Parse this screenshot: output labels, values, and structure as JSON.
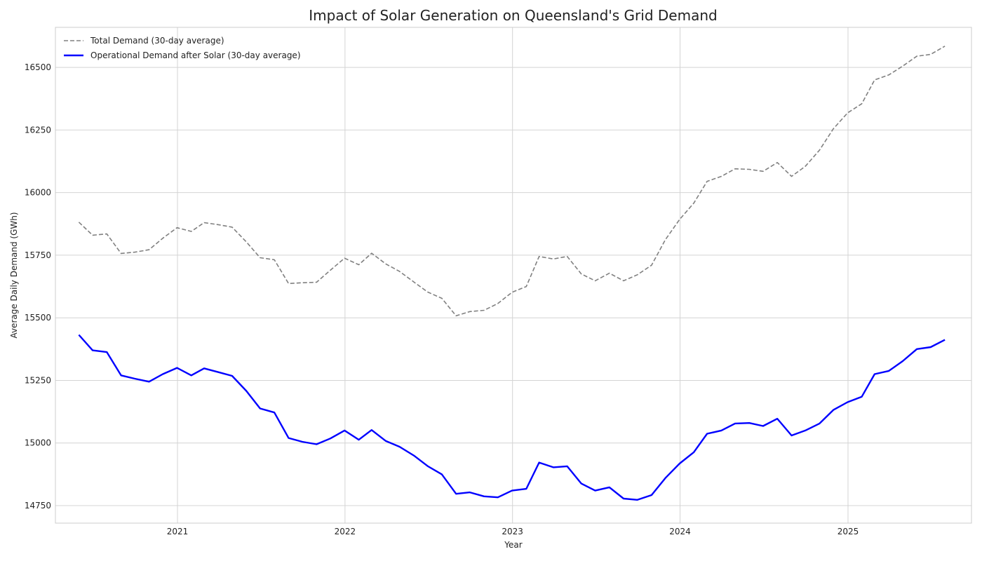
{
  "chart_data": {
    "type": "line",
    "title": "Impact of Solar Generation on Queensland's Grid Demand",
    "xlabel": "Year",
    "ylabel": "Average Daily Demand (GWh)",
    "x_ticks": [
      "2021",
      "2022",
      "2023",
      "2024",
      "2025"
    ],
    "y_ticks": [
      14750,
      15000,
      15250,
      15500,
      15750,
      16000,
      16250,
      16500
    ],
    "xlim": [
      "2020-04-10",
      "2025-09-27"
    ],
    "ylim": [
      14680,
      16660
    ],
    "grid": true,
    "legend_position": "top-left",
    "x": [
      "2020-05-31",
      "2020-06-30",
      "2020-07-31",
      "2020-08-31",
      "2020-09-30",
      "2020-10-31",
      "2020-11-30",
      "2020-12-31",
      "2021-01-31",
      "2021-02-28",
      "2021-03-31",
      "2021-04-30",
      "2021-05-31",
      "2021-06-30",
      "2021-07-31",
      "2021-08-31",
      "2021-09-30",
      "2021-10-31",
      "2021-11-30",
      "2021-12-31",
      "2022-01-31",
      "2022-02-28",
      "2022-03-31",
      "2022-04-30",
      "2022-05-31",
      "2022-06-30",
      "2022-07-31",
      "2022-08-31",
      "2022-09-30",
      "2022-10-31",
      "2022-11-30",
      "2022-12-31",
      "2023-01-31",
      "2023-02-28",
      "2023-03-31",
      "2023-04-30",
      "2023-05-31",
      "2023-06-30",
      "2023-07-31",
      "2023-08-31",
      "2023-09-30",
      "2023-10-31",
      "2023-11-30",
      "2023-12-31",
      "2024-01-31",
      "2024-02-29",
      "2024-03-31",
      "2024-04-30",
      "2024-05-31",
      "2024-06-30",
      "2024-07-31",
      "2024-08-31",
      "2024-09-30",
      "2024-10-31",
      "2024-11-30",
      "2024-12-31",
      "2025-01-31",
      "2025-02-28",
      "2025-03-31",
      "2025-04-30",
      "2025-05-31",
      "2025-06-30",
      "2025-07-31"
    ],
    "series": [
      {
        "name": "Total Demand (30-day average)",
        "color": "#808080",
        "dash": "dashed",
        "values": [
          15882,
          15830,
          15835,
          15757,
          15762,
          15772,
          15818,
          15860,
          15845,
          15880,
          15872,
          15862,
          15803,
          15740,
          15732,
          15637,
          15640,
          15642,
          15690,
          15738,
          15712,
          15758,
          15715,
          15685,
          15643,
          15603,
          15578,
          15508,
          15525,
          15530,
          15557,
          15602,
          15625,
          15745,
          15735,
          15745,
          15675,
          15648,
          15678,
          15648,
          15672,
          15710,
          15812,
          15893,
          15958,
          16045,
          16065,
          16095,
          16093,
          16085,
          16120,
          16065,
          16105,
          16170,
          16255,
          16318,
          16355,
          16450,
          16470,
          16505,
          16545,
          16552,
          16585
        ]
      },
      {
        "name": "Operational Demand after Solar (30-day average)",
        "color": "#0000ff",
        "dash": "solid",
        "values": [
          15432,
          15370,
          15363,
          15270,
          15257,
          15245,
          15275,
          15300,
          15270,
          15298,
          15283,
          15268,
          15208,
          15138,
          15122,
          15020,
          15005,
          14995,
          15018,
          15050,
          15013,
          15052,
          15008,
          14985,
          14950,
          14908,
          14875,
          14797,
          14803,
          14787,
          14783,
          14810,
          14817,
          14922,
          14903,
          14907,
          14838,
          14810,
          14823,
          14778,
          14773,
          14792,
          14860,
          14918,
          14963,
          15037,
          15050,
          15078,
          15080,
          15068,
          15097,
          15030,
          15050,
          15078,
          15132,
          15163,
          15185,
          15275,
          15288,
          15327,
          15375,
          15383,
          15412
        ]
      }
    ]
  }
}
